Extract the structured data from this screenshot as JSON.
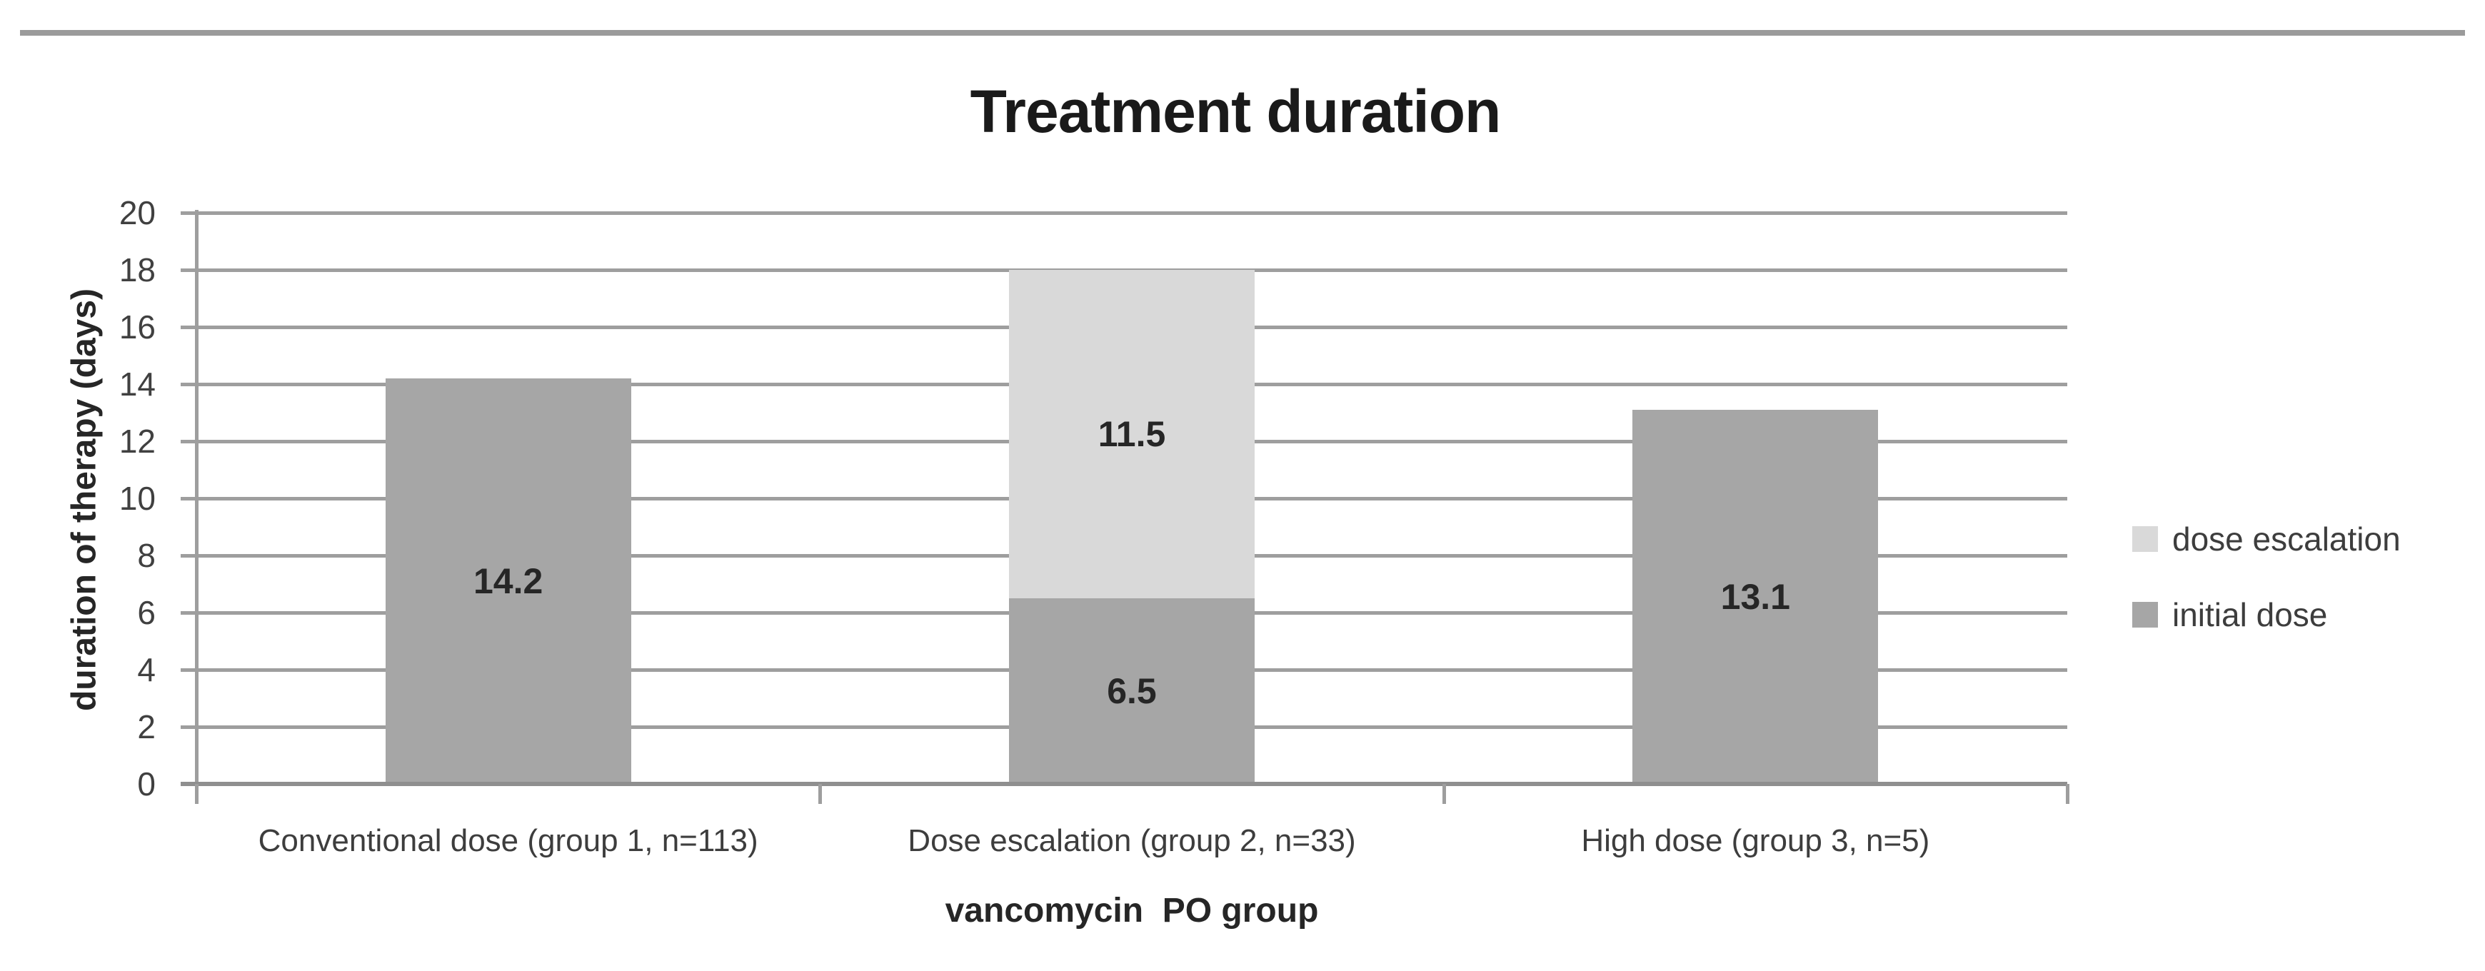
{
  "page": {
    "background": "#ffffff",
    "top_border_color": "#9b9b9b"
  },
  "colors": {
    "gridline": "#9e9e9e",
    "axis_line": "#8f8f8f",
    "title_text": "#1a1a1a",
    "axis_title_text": "#262626",
    "tick_label_text": "#404040",
    "category_label_text": "#3d3d3d",
    "value_label_text": "#262626",
    "legend_text": "#3d3d3d",
    "bar_initial_dose": "#a6a6a6",
    "bar_dose_escalation": "#d9d9d9"
  },
  "chart_data": {
    "type": "bar",
    "stacked": true,
    "title": "Treatment duration",
    "xlabel": "vancomycin  PO group",
    "ylabel": "duration of therapy (days)",
    "categories": [
      "Conventional dose (group 1, n=113)",
      "Dose escalation (group 2, n=33)",
      "High dose (group 3, n=5)"
    ],
    "series": [
      {
        "name": "initial dose",
        "color": "#a6a6a6",
        "values": [
          14.2,
          6.5,
          13.1
        ]
      },
      {
        "name": "dose escalation",
        "color": "#d9d9d9",
        "values": [
          null,
          11.5,
          null
        ]
      }
    ],
    "data_labels": [
      [
        "14.2",
        "6.5",
        "13.1"
      ],
      [
        null,
        "11.5",
        null
      ]
    ],
    "ylim": [
      0,
      20
    ],
    "yticks": [
      0,
      2,
      4,
      6,
      8,
      10,
      12,
      14,
      16,
      18,
      20
    ],
    "grid": true,
    "legend": {
      "position": "right",
      "entries": [
        {
          "label": "dose escalation",
          "color": "#d9d9d9"
        },
        {
          "label": "initial dose",
          "color": "#a6a6a6"
        }
      ]
    }
  }
}
